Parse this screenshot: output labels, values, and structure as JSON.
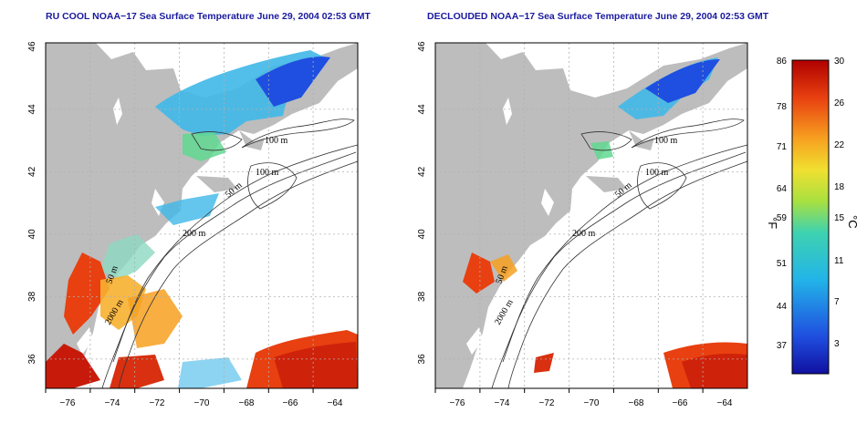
{
  "panels": [
    {
      "id": "left",
      "title": "RU COOL NOAA−17 Sea Surface Temperature June 29, 2004 02:53 GMT",
      "x_ticks": [
        "−76",
        "−74",
        "−72",
        "−70",
        "−68",
        "−66",
        "−64"
      ],
      "y_ticks": [
        "36",
        "38",
        "40",
        "42",
        "44",
        "46"
      ],
      "contour_labels": [
        "100 m",
        "100 m",
        "50 m",
        "200 m",
        "50 m",
        "2000 m"
      ]
    },
    {
      "id": "right",
      "title": "DECLOUDED NOAA−17 Sea Surface Temperature June 29, 2004 02:53 GMT",
      "x_ticks": [
        "−76",
        "−74",
        "−72",
        "−70",
        "−68",
        "−66",
        "−64"
      ],
      "y_ticks": [
        "36",
        "38",
        "40",
        "42",
        "44",
        "46"
      ],
      "contour_labels": [
        "100 m",
        "100 m",
        "50 m",
        "200 m",
        "50 m",
        "2000 m"
      ]
    }
  ],
  "colorbar": {
    "fahrenheit_label": "°F",
    "celsius_label": "°C",
    "fahrenheit_ticks": [
      "86",
      "78",
      "71",
      "64",
      "59",
      "51",
      "44",
      "37"
    ],
    "celsius_ticks": [
      "30",
      "26",
      "22",
      "18",
      "15",
      "11",
      "7",
      "3"
    ]
  },
  "colors": {
    "land": "#bdbdbd",
    "cloud": "#ffffff",
    "grid": "#b0b0b0",
    "title": "#1a1aa0"
  }
}
